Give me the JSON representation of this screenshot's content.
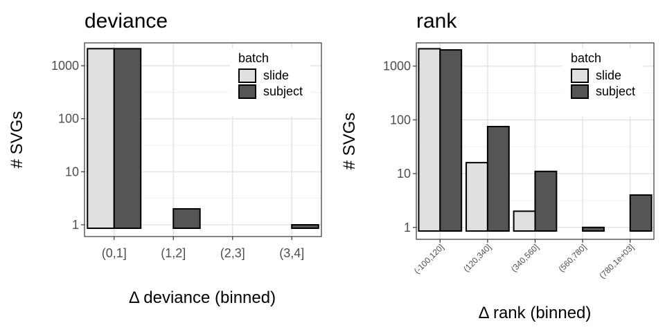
{
  "chart_data": [
    {
      "type": "bar",
      "title": "deviance",
      "xlabel": "Δ deviance (binned)",
      "ylabel": "# SVGs",
      "yscale": "log",
      "yticks": [
        "1",
        "10",
        "100",
        "1000"
      ],
      "categories": [
        "(0,1]",
        "(1,2]",
        "(2,3]",
        "(3,4]"
      ],
      "legend": {
        "title": "batch",
        "position": "top-right"
      },
      "grid": true,
      "series": [
        {
          "name": "slide",
          "color": "#e0e0e0",
          "values": [
            2100,
            null,
            null,
            null
          ]
        },
        {
          "name": "subject",
          "color": "#555555",
          "values": [
            2100,
            2,
            null,
            1
          ]
        }
      ]
    },
    {
      "type": "bar",
      "title": "rank",
      "xlabel": "Δ rank (binned)",
      "ylabel": "# SVGs",
      "yscale": "log",
      "yticks": [
        "1",
        "10",
        "100",
        "1000"
      ],
      "categories": [
        "(-100,120]",
        "(120,340]",
        "(340,560]",
        "(560,780]",
        "(780,1e+03]"
      ],
      "legend": {
        "title": "batch",
        "position": "top-right"
      },
      "grid": true,
      "series": [
        {
          "name": "slide",
          "color": "#e0e0e0",
          "values": [
            2100,
            16,
            2,
            null,
            null
          ]
        },
        {
          "name": "subject",
          "color": "#555555",
          "values": [
            2000,
            75,
            11,
            1,
            4
          ]
        }
      ]
    }
  ]
}
